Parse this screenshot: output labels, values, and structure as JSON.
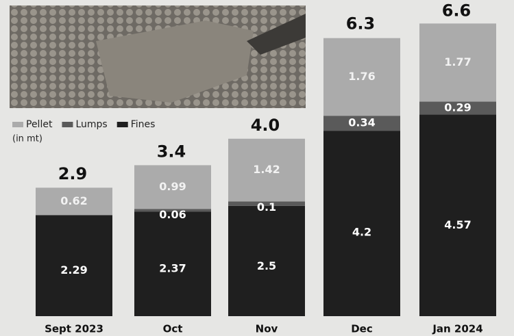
{
  "chart_data": {
    "type": "stacked-bar",
    "subtitle": "(in mt)",
    "categories": [
      "Sept 2023",
      "Oct",
      "Nov",
      "Dec",
      "Jan 2024"
    ],
    "series": [
      {
        "name": "Fines",
        "color": "#1f1f1f",
        "values": [
          2.29,
          2.37,
          2.5,
          4.2,
          4.57
        ]
      },
      {
        "name": "Lumps",
        "color": "#5a5a5a",
        "values": [
          null,
          0.06,
          0.1,
          0.34,
          0.29
        ]
      },
      {
        "name": "Pellet",
        "color": "#ababab",
        "values": [
          0.62,
          0.99,
          1.42,
          1.76,
          1.77
        ]
      }
    ],
    "totals": {
      "values": [
        2.9,
        3.4,
        4,
        6.3,
        6.6
      ],
      "value_labels": [
        "2.9",
        "3.4",
        "4.0",
        "6.3",
        "6.6"
      ]
    },
    "legend_order": [
      2,
      1,
      0
    ]
  }
}
